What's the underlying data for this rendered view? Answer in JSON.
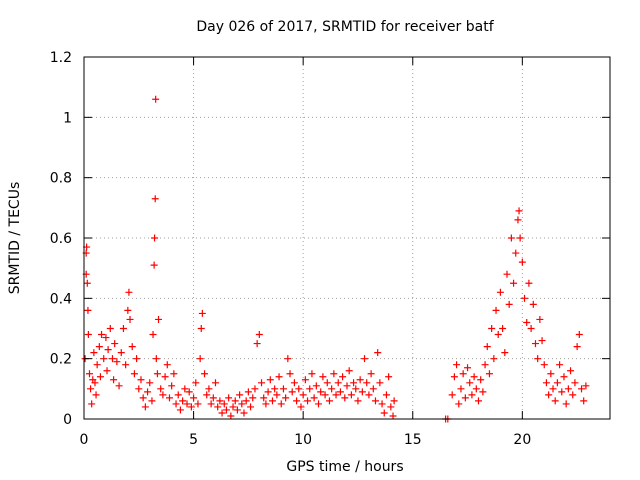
{
  "chart_data": {
    "type": "scatter",
    "title": "Day 026 of 2017, SRMTID for receiver batf",
    "xlabel": "GPS time / hours",
    "ylabel": "SRMTID / TECUs",
    "xlim": [
      0,
      24
    ],
    "ylim": [
      0,
      1.2
    ],
    "xticks": [
      0,
      5,
      10,
      15,
      20
    ],
    "yticks": [
      0,
      0.2,
      0.4,
      0.6,
      0.8,
      1,
      1.2
    ],
    "xtick_labels": [
      "0",
      "5",
      "10",
      "15",
      "20"
    ],
    "ytick_labels": [
      "0",
      "0.2",
      "0.4",
      "0.6",
      "0.8",
      "1",
      "1.2"
    ],
    "grid": true,
    "marker": "+",
    "series": [
      {
        "name": "SRMTID",
        "color": "#ff0000",
        "points": [
          [
            0.05,
            0.2
          ],
          [
            0.1,
            0.48
          ],
          [
            0.1,
            0.55
          ],
          [
            0.12,
            0.57
          ],
          [
            0.15,
            0.45
          ],
          [
            0.18,
            0.36
          ],
          [
            0.2,
            0.28
          ],
          [
            0.25,
            0.15
          ],
          [
            0.3,
            0.1
          ],
          [
            0.35,
            0.05
          ],
          [
            0.4,
            0.13
          ],
          [
            0.45,
            0.22
          ],
          [
            0.5,
            0.12
          ],
          [
            0.55,
            0.08
          ],
          [
            0.6,
            0.18
          ],
          [
            0.7,
            0.24
          ],
          [
            0.75,
            0.14
          ],
          [
            0.8,
            0.28
          ],
          [
            0.9,
            0.2
          ],
          [
            1.0,
            0.27
          ],
          [
            1.05,
            0.16
          ],
          [
            1.1,
            0.23
          ],
          [
            1.2,
            0.3
          ],
          [
            1.3,
            0.2
          ],
          [
            1.35,
            0.13
          ],
          [
            1.4,
            0.25
          ],
          [
            1.5,
            0.19
          ],
          [
            1.6,
            0.11
          ],
          [
            1.7,
            0.22
          ],
          [
            1.8,
            0.3
          ],
          [
            1.9,
            0.18
          ],
          [
            2.0,
            0.36
          ],
          [
            2.05,
            0.42
          ],
          [
            2.1,
            0.33
          ],
          [
            2.2,
            0.24
          ],
          [
            2.3,
            0.15
          ],
          [
            2.4,
            0.2
          ],
          [
            2.5,
            0.1
          ],
          [
            2.6,
            0.13
          ],
          [
            2.7,
            0.07
          ],
          [
            2.8,
            0.04
          ],
          [
            2.9,
            0.09
          ],
          [
            3.0,
            0.12
          ],
          [
            3.1,
            0.06
          ],
          [
            3.15,
            0.28
          ],
          [
            3.2,
            0.51
          ],
          [
            3.22,
            0.6
          ],
          [
            3.25,
            0.73
          ],
          [
            3.27,
            1.06
          ],
          [
            3.3,
            0.2
          ],
          [
            3.35,
            0.15
          ],
          [
            3.4,
            0.33
          ],
          [
            3.5,
            0.1
          ],
          [
            3.6,
            0.08
          ],
          [
            3.7,
            0.14
          ],
          [
            3.8,
            0.18
          ],
          [
            3.9,
            0.07
          ],
          [
            4.0,
            0.11
          ],
          [
            4.1,
            0.15
          ],
          [
            4.2,
            0.05
          ],
          [
            4.3,
            0.08
          ],
          [
            4.4,
            0.03
          ],
          [
            4.5,
            0.06
          ],
          [
            4.6,
            0.1
          ],
          [
            4.7,
            0.05
          ],
          [
            4.8,
            0.09
          ],
          [
            4.9,
            0.04
          ],
          [
            5.0,
            0.07
          ],
          [
            5.1,
            0.12
          ],
          [
            5.2,
            0.05
          ],
          [
            5.3,
            0.2
          ],
          [
            5.35,
            0.3
          ],
          [
            5.4,
            0.35
          ],
          [
            5.5,
            0.15
          ],
          [
            5.6,
            0.08
          ],
          [
            5.7,
            0.1
          ],
          [
            5.8,
            0.05
          ],
          [
            5.9,
            0.07
          ],
          [
            6.0,
            0.12
          ],
          [
            6.1,
            0.04
          ],
          [
            6.2,
            0.06
          ],
          [
            6.3,
            0.02
          ],
          [
            6.4,
            0.05
          ],
          [
            6.5,
            0.03
          ],
          [
            6.6,
            0.07
          ],
          [
            6.7,
            0.01
          ],
          [
            6.8,
            0.04
          ],
          [
            6.9,
            0.06
          ],
          [
            7.0,
            0.03
          ],
          [
            7.1,
            0.08
          ],
          [
            7.2,
            0.05
          ],
          [
            7.3,
            0.02
          ],
          [
            7.4,
            0.06
          ],
          [
            7.5,
            0.09
          ],
          [
            7.6,
            0.04
          ],
          [
            7.7,
            0.07
          ],
          [
            7.8,
            0.1
          ],
          [
            7.9,
            0.25
          ],
          [
            8.0,
            0.28
          ],
          [
            8.1,
            0.12
          ],
          [
            8.2,
            0.07
          ],
          [
            8.3,
            0.05
          ],
          [
            8.4,
            0.09
          ],
          [
            8.5,
            0.13
          ],
          [
            8.6,
            0.06
          ],
          [
            8.7,
            0.1
          ],
          [
            8.8,
            0.08
          ],
          [
            8.9,
            0.14
          ],
          [
            9.0,
            0.05
          ],
          [
            9.1,
            0.1
          ],
          [
            9.2,
            0.07
          ],
          [
            9.3,
            0.2
          ],
          [
            9.4,
            0.15
          ],
          [
            9.5,
            0.09
          ],
          [
            9.6,
            0.12
          ],
          [
            9.7,
            0.06
          ],
          [
            9.8,
            0.1
          ],
          [
            9.9,
            0.04
          ],
          [
            10.0,
            0.08
          ],
          [
            10.1,
            0.13
          ],
          [
            10.2,
            0.06
          ],
          [
            10.3,
            0.1
          ],
          [
            10.4,
            0.15
          ],
          [
            10.5,
            0.07
          ],
          [
            10.6,
            0.11
          ],
          [
            10.7,
            0.05
          ],
          [
            10.8,
            0.09
          ],
          [
            10.9,
            0.14
          ],
          [
            11.0,
            0.08
          ],
          [
            11.1,
            0.12
          ],
          [
            11.2,
            0.06
          ],
          [
            11.3,
            0.1
          ],
          [
            11.4,
            0.15
          ],
          [
            11.5,
            0.08
          ],
          [
            11.6,
            0.12
          ],
          [
            11.7,
            0.09
          ],
          [
            11.8,
            0.14
          ],
          [
            11.9,
            0.07
          ],
          [
            12.0,
            0.11
          ],
          [
            12.1,
            0.16
          ],
          [
            12.2,
            0.08
          ],
          [
            12.3,
            0.12
          ],
          [
            12.4,
            0.1
          ],
          [
            12.5,
            0.06
          ],
          [
            12.6,
            0.13
          ],
          [
            12.7,
            0.09
          ],
          [
            12.8,
            0.2
          ],
          [
            12.9,
            0.12
          ],
          [
            13.0,
            0.08
          ],
          [
            13.1,
            0.15
          ],
          [
            13.2,
            0.1
          ],
          [
            13.3,
            0.06
          ],
          [
            13.4,
            0.22
          ],
          [
            13.5,
            0.12
          ],
          [
            13.6,
            0.05
          ],
          [
            13.7,
            0.02
          ],
          [
            13.8,
            0.08
          ],
          [
            13.9,
            0.14
          ],
          [
            14.0,
            0.04
          ],
          [
            14.1,
            0.01
          ],
          [
            14.15,
            0.06
          ],
          [
            16.5,
            0.0
          ],
          [
            16.6,
            0.0
          ],
          [
            16.8,
            0.08
          ],
          [
            16.9,
            0.14
          ],
          [
            17.0,
            0.18
          ],
          [
            17.1,
            0.05
          ],
          [
            17.2,
            0.1
          ],
          [
            17.3,
            0.15
          ],
          [
            17.4,
            0.07
          ],
          [
            17.5,
            0.17
          ],
          [
            17.6,
            0.12
          ],
          [
            17.7,
            0.08
          ],
          [
            17.8,
            0.14
          ],
          [
            17.9,
            0.1
          ],
          [
            18.0,
            0.06
          ],
          [
            18.1,
            0.13
          ],
          [
            18.2,
            0.09
          ],
          [
            18.3,
            0.18
          ],
          [
            18.4,
            0.24
          ],
          [
            18.5,
            0.15
          ],
          [
            18.6,
            0.3
          ],
          [
            18.7,
            0.2
          ],
          [
            18.8,
            0.36
          ],
          [
            18.9,
            0.28
          ],
          [
            19.0,
            0.42
          ],
          [
            19.1,
            0.3
          ],
          [
            19.2,
            0.22
          ],
          [
            19.3,
            0.48
          ],
          [
            19.4,
            0.38
          ],
          [
            19.5,
            0.6
          ],
          [
            19.6,
            0.45
          ],
          [
            19.7,
            0.55
          ],
          [
            19.8,
            0.66
          ],
          [
            19.85,
            0.69
          ],
          [
            19.9,
            0.6
          ],
          [
            20.0,
            0.52
          ],
          [
            20.1,
            0.4
          ],
          [
            20.2,
            0.32
          ],
          [
            20.3,
            0.45
          ],
          [
            20.4,
            0.3
          ],
          [
            20.5,
            0.38
          ],
          [
            20.6,
            0.25
          ],
          [
            20.7,
            0.2
          ],
          [
            20.8,
            0.33
          ],
          [
            20.9,
            0.26
          ],
          [
            21.0,
            0.18
          ],
          [
            21.1,
            0.12
          ],
          [
            21.2,
            0.08
          ],
          [
            21.3,
            0.15
          ],
          [
            21.4,
            0.1
          ],
          [
            21.5,
            0.06
          ],
          [
            21.6,
            0.12
          ],
          [
            21.7,
            0.18
          ],
          [
            21.8,
            0.09
          ],
          [
            21.9,
            0.14
          ],
          [
            22.0,
            0.05
          ],
          [
            22.1,
            0.1
          ],
          [
            22.2,
            0.16
          ],
          [
            22.3,
            0.08
          ],
          [
            22.4,
            0.12
          ],
          [
            22.5,
            0.24
          ],
          [
            22.6,
            0.28
          ],
          [
            22.7,
            0.1
          ],
          [
            22.8,
            0.06
          ],
          [
            22.9,
            0.11
          ]
        ]
      }
    ]
  }
}
